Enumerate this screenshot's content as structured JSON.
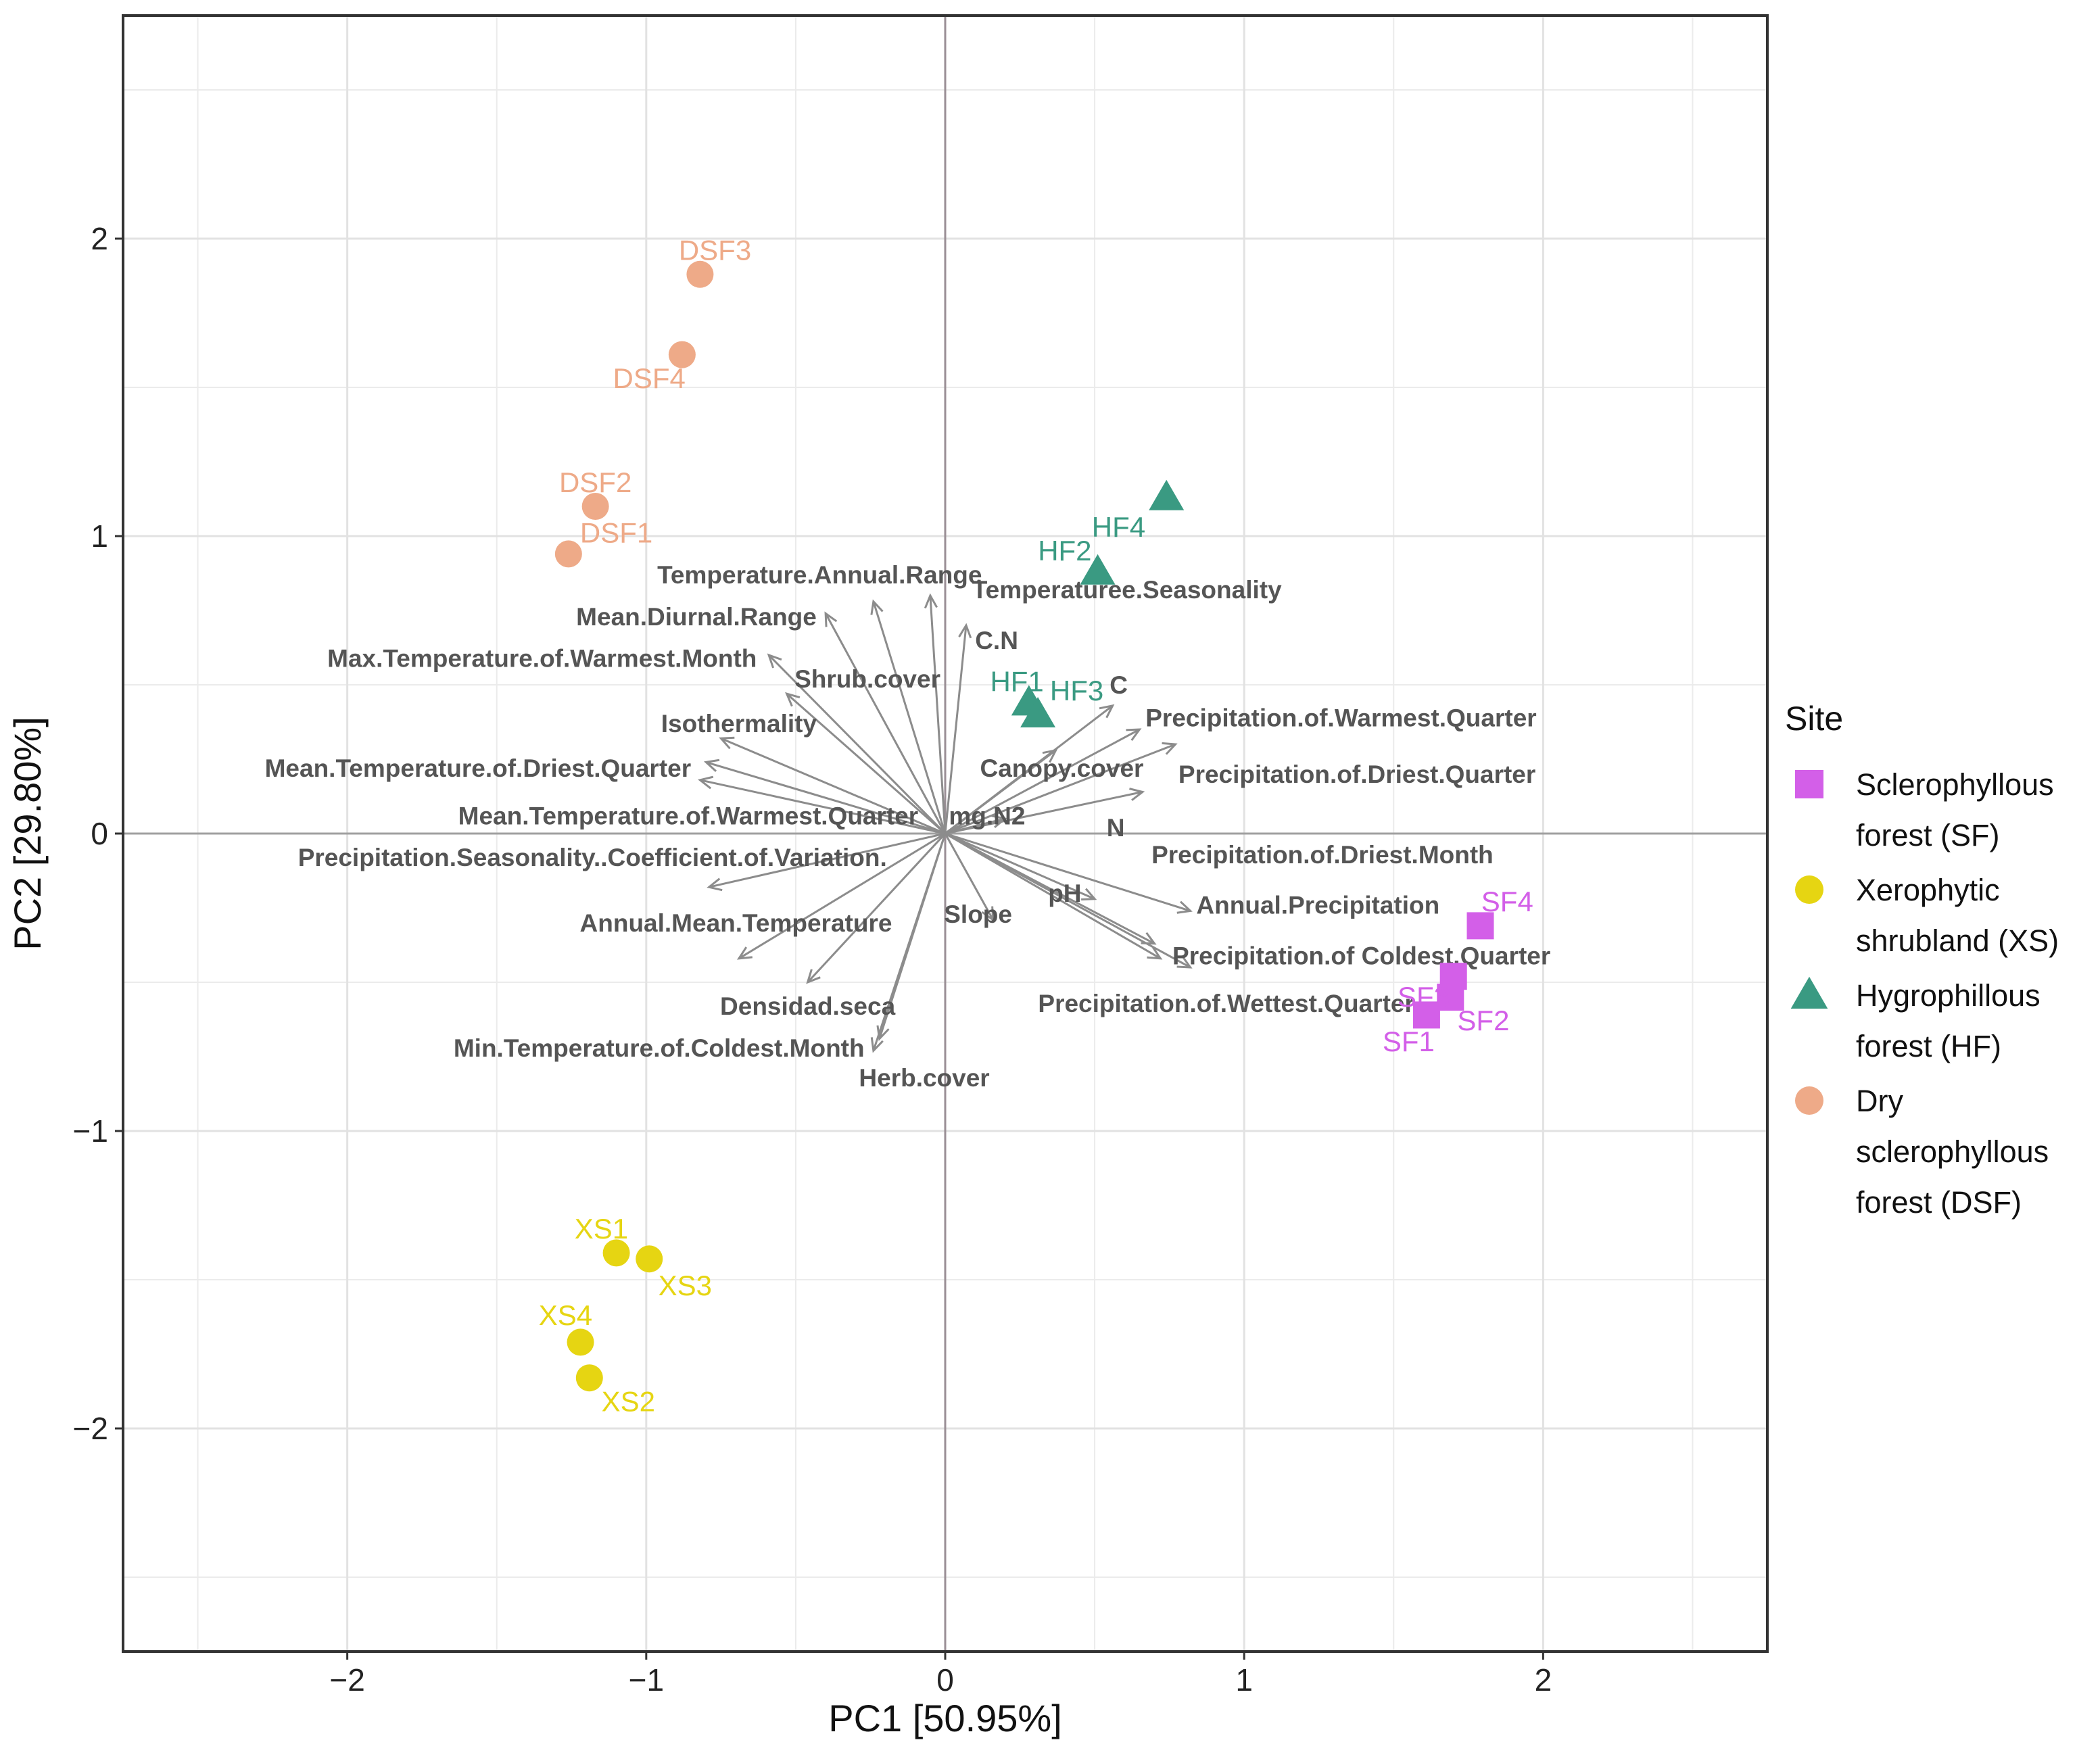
{
  "chart_data": {
    "type": "scatter",
    "subtype": "pca-biplot",
    "xlabel": "PC1 [50.95%]",
    "ylabel": "PC2 [29.80%]",
    "xlim": [
      -2.75,
      2.75
    ],
    "ylim": [
      -2.75,
      2.75
    ],
    "xticks": [
      -2,
      -1,
      0,
      1,
      2
    ],
    "yticks": [
      -2,
      -1,
      0,
      1,
      2
    ],
    "grid": true,
    "legend": {
      "title": "Site",
      "position": "right",
      "entries": [
        {
          "key": "SF",
          "lines": [
            "Sclerophyllous",
            "forest (SF)"
          ],
          "shape": "square",
          "color": "#d35fe8"
        },
        {
          "key": "XS",
          "lines": [
            "Xerophytic",
            "shrubland (XS)"
          ],
          "shape": "circle",
          "color": "#e6d512"
        },
        {
          "key": "HF",
          "lines": [
            "Hygrophillous",
            "forest (HF)"
          ],
          "shape": "triangle",
          "color": "#3a9a82"
        },
        {
          "key": "DSF",
          "lines": [
            "Dry",
            "sclerophyllous",
            "forest (DSF)"
          ],
          "shape": "circle",
          "color": "#eeaa88"
        }
      ]
    },
    "series": [
      {
        "name": "Sclerophyllous forest (SF)",
        "group": "SF",
        "points": [
          {
            "label": "SF1",
            "x": 1.61,
            "y": -0.61,
            "lx": 1.55,
            "ly": -0.7
          },
          {
            "label": "SF2",
            "x": 1.69,
            "y": -0.55,
            "lx": 1.8,
            "ly": -0.63
          },
          {
            "label": "SF3",
            "x": 1.7,
            "y": -0.48,
            "lx": 1.6,
            "ly": -0.55
          },
          {
            "label": "SF4",
            "x": 1.79,
            "y": -0.31,
            "lx": 1.88,
            "ly": -0.23
          }
        ]
      },
      {
        "name": "Xerophytic shrubland (XS)",
        "group": "XS",
        "points": [
          {
            "label": "XS1",
            "x": -1.1,
            "y": -1.41,
            "lx": -1.15,
            "ly": -1.33
          },
          {
            "label": "XS2",
            "x": -1.19,
            "y": -1.83,
            "lx": -1.06,
            "ly": -1.91
          },
          {
            "label": "XS3",
            "x": -0.99,
            "y": -1.43,
            "lx": -0.87,
            "ly": -1.52
          },
          {
            "label": "XS4",
            "x": -1.22,
            "y": -1.71,
            "lx": -1.27,
            "ly": -1.62
          }
        ]
      },
      {
        "name": "Hygrophillous forest (HF)",
        "group": "HF",
        "points": [
          {
            "label": "HF1",
            "x": 0.28,
            "y": 0.44,
            "lx": 0.24,
            "ly": 0.51
          },
          {
            "label": "HF2",
            "x": 0.51,
            "y": 0.88,
            "lx": 0.4,
            "ly": 0.95
          },
          {
            "label": "HF3",
            "x": 0.31,
            "y": 0.4,
            "lx": 0.44,
            "ly": 0.48
          },
          {
            "label": "HF4",
            "x": 0.74,
            "y": 1.13,
            "lx": 0.58,
            "ly": 1.03
          }
        ]
      },
      {
        "name": "Dry sclerophyllous forest (DSF)",
        "group": "DSF",
        "points": [
          {
            "label": "DSF1",
            "x": -1.26,
            "y": 0.94,
            "lx": -1.1,
            "ly": 1.01
          },
          {
            "label": "DSF2",
            "x": -1.17,
            "y": 1.1,
            "lx": -1.17,
            "ly": 1.18
          },
          {
            "label": "DSF3",
            "x": -0.82,
            "y": 1.88,
            "lx": -0.77,
            "ly": 1.96
          },
          {
            "label": "DSF4",
            "x": -0.88,
            "y": 1.61,
            "lx": -0.99,
            "ly": 1.53
          }
        ]
      }
    ],
    "loadings": [
      {
        "name": "Temperature.Annual.Range",
        "x": -0.24,
        "y": 0.78,
        "lx": -0.42,
        "ly": 0.87,
        "anchor": "middle"
      },
      {
        "name": "Temperaturee.Seasonality",
        "x": -0.05,
        "y": 0.8,
        "lx": 0.09,
        "ly": 0.82,
        "anchor": "start"
      },
      {
        "name": "Mean.Diurnal.Range",
        "x": -0.4,
        "y": 0.74,
        "lx": -0.43,
        "ly": 0.73,
        "anchor": "end"
      },
      {
        "name": "Max.Temperature.of.Warmest.Month",
        "x": -0.59,
        "y": 0.6,
        "lx": -0.63,
        "ly": 0.59,
        "anchor": "end"
      },
      {
        "name": "C.N",
        "x": 0.07,
        "y": 0.7,
        "lx": 0.1,
        "ly": 0.65,
        "anchor": "start"
      },
      {
        "name": "Shrub.cover",
        "x": -0.53,
        "y": 0.47,
        "lx": -0.26,
        "ly": 0.52,
        "anchor": "middle"
      },
      {
        "name": "C",
        "x": 0.56,
        "y": 0.43,
        "lx": 0.55,
        "ly": 0.5,
        "anchor": "start"
      },
      {
        "name": "Isothermality",
        "x": -0.75,
        "y": 0.32,
        "lx": -0.69,
        "ly": 0.37,
        "anchor": "middle"
      },
      {
        "name": "Mean.Temperature.of.Driest.Quarter",
        "x": -0.82,
        "y": 0.18,
        "lx": -0.85,
        "ly": 0.22,
        "anchor": "end"
      },
      {
        "name": "Canopy.cover",
        "x": 0.37,
        "y": 0.28,
        "lx": 0.39,
        "ly": 0.22,
        "anchor": "middle"
      },
      {
        "name": "Precipitation.of.Warmest.Quarter",
        "x": 0.65,
        "y": 0.35,
        "lx": 0.67,
        "ly": 0.39,
        "anchor": "start"
      },
      {
        "name": "Precipitation.of.Driest.Quarter",
        "x": 0.77,
        "y": 0.3,
        "lx": 0.78,
        "ly": 0.2,
        "anchor": "start"
      },
      {
        "name": "Mean.Temperature.of.Warmest.Quarter",
        "x": -0.8,
        "y": 0.24,
        "lx": -0.09,
        "ly": 0.06,
        "anchor": "end"
      },
      {
        "name": "mg.N2",
        "x": 0.2,
        "y": 0.05,
        "lx": 0.14,
        "ly": 0.06,
        "anchor": "middle"
      },
      {
        "name": "N",
        "x": 0.66,
        "y": 0.14,
        "lx": 0.54,
        "ly": 0.02,
        "anchor": "start"
      },
      {
        "name": "Precipitation.Seasonality..Coefficient.of.Variation.",
        "x": -0.79,
        "y": -0.18,
        "lx": -1.18,
        "ly": -0.08,
        "anchor": "middle"
      },
      {
        "name": "Precipitation.of.Driest.Month",
        "x": 0.82,
        "y": -0.26,
        "lx": 0.69,
        "ly": -0.07,
        "anchor": "start"
      },
      {
        "name": "pH",
        "x": 0.5,
        "y": -0.22,
        "lx": 0.4,
        "ly": -0.2,
        "anchor": "middle"
      },
      {
        "name": "Slope",
        "x": 0.16,
        "y": -0.29,
        "lx": 0.11,
        "ly": -0.27,
        "anchor": "middle"
      },
      {
        "name": "Annual.Mean.Temperature",
        "x": -0.69,
        "y": -0.42,
        "lx": -0.7,
        "ly": -0.3,
        "anchor": "middle"
      },
      {
        "name": "Annual.Precipitation",
        "x": 0.82,
        "y": -0.45,
        "lx": 0.84,
        "ly": -0.24,
        "anchor": "start"
      },
      {
        "name": "Precipitation.of   Coldest.Quarter",
        "x": 0.72,
        "y": -0.42,
        "lx": 0.76,
        "ly": -0.41,
        "anchor": "start"
      },
      {
        "name": "Precipitation.of.Wettest.Quarter",
        "x": 0.7,
        "y": -0.37,
        "lx": 0.94,
        "ly": -0.57,
        "anchor": "middle"
      },
      {
        "name": "Densidad.seca",
        "x": -0.46,
        "y": -0.5,
        "lx": -0.46,
        "ly": -0.58,
        "anchor": "middle"
      },
      {
        "name": "Min.Temperature.of.Coldest.Month",
        "x": -0.24,
        "y": -0.73,
        "lx": -0.27,
        "ly": -0.72,
        "anchor": "end"
      },
      {
        "name": "Herb.cover",
        "x": -0.22,
        "y": -0.69,
        "lx": -0.07,
        "ly": -0.82,
        "anchor": "middle"
      }
    ]
  }
}
